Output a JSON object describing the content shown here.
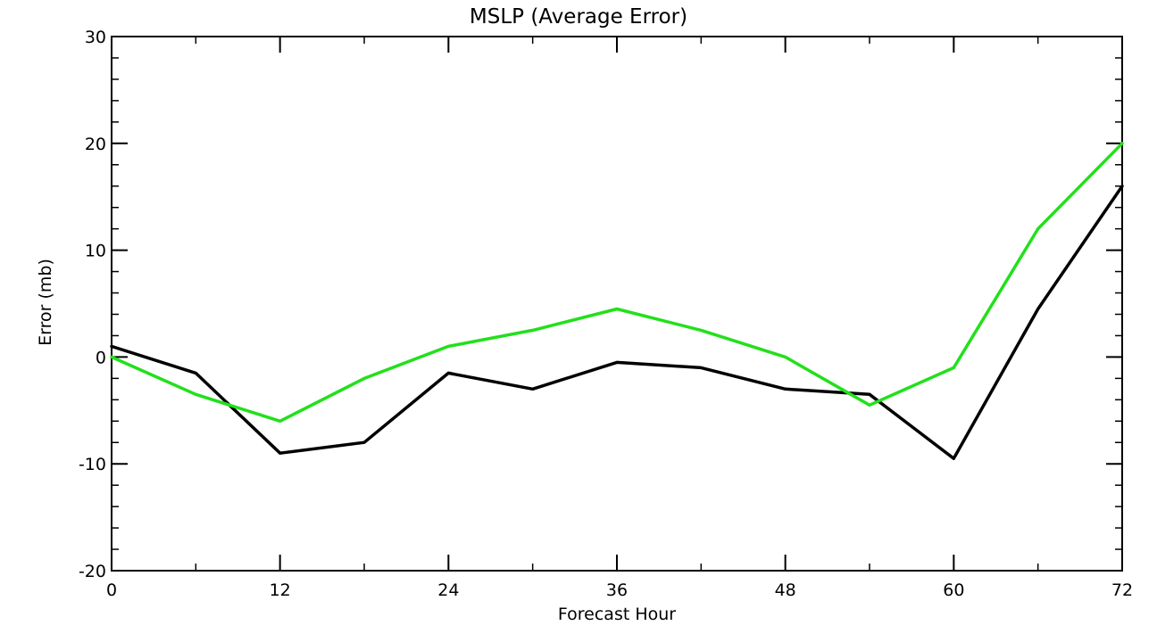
{
  "chart_data": {
    "type": "line",
    "title": "MSLP (Average Error)",
    "xlabel": "Forecast Hour",
    "ylabel": "Error (mb)",
    "xlim": [
      0,
      72
    ],
    "ylim": [
      -20,
      30
    ],
    "xticks": [
      0,
      12,
      24,
      36,
      48,
      60,
      72
    ],
    "yticks": [
      -20,
      -10,
      0,
      10,
      20,
      30
    ],
    "x_minor_step": 6,
    "y_minor_step": 2,
    "grid": false,
    "legend": "none",
    "x": [
      0,
      6,
      12,
      18,
      24,
      30,
      36,
      42,
      48,
      54,
      60,
      66,
      72
    ],
    "series": [
      {
        "color": "#000000",
        "values": [
          1,
          -1.5,
          -9,
          -8,
          -1.5,
          -3,
          -0.5,
          -1,
          -3,
          -3.5,
          -9.5,
          4.5,
          16
        ]
      },
      {
        "color": "#22e01b",
        "values": [
          0,
          -3.5,
          -6,
          -2,
          1,
          2.5,
          4.5,
          2.5,
          0,
          -4.5,
          -1,
          12,
          20
        ]
      }
    ]
  }
}
